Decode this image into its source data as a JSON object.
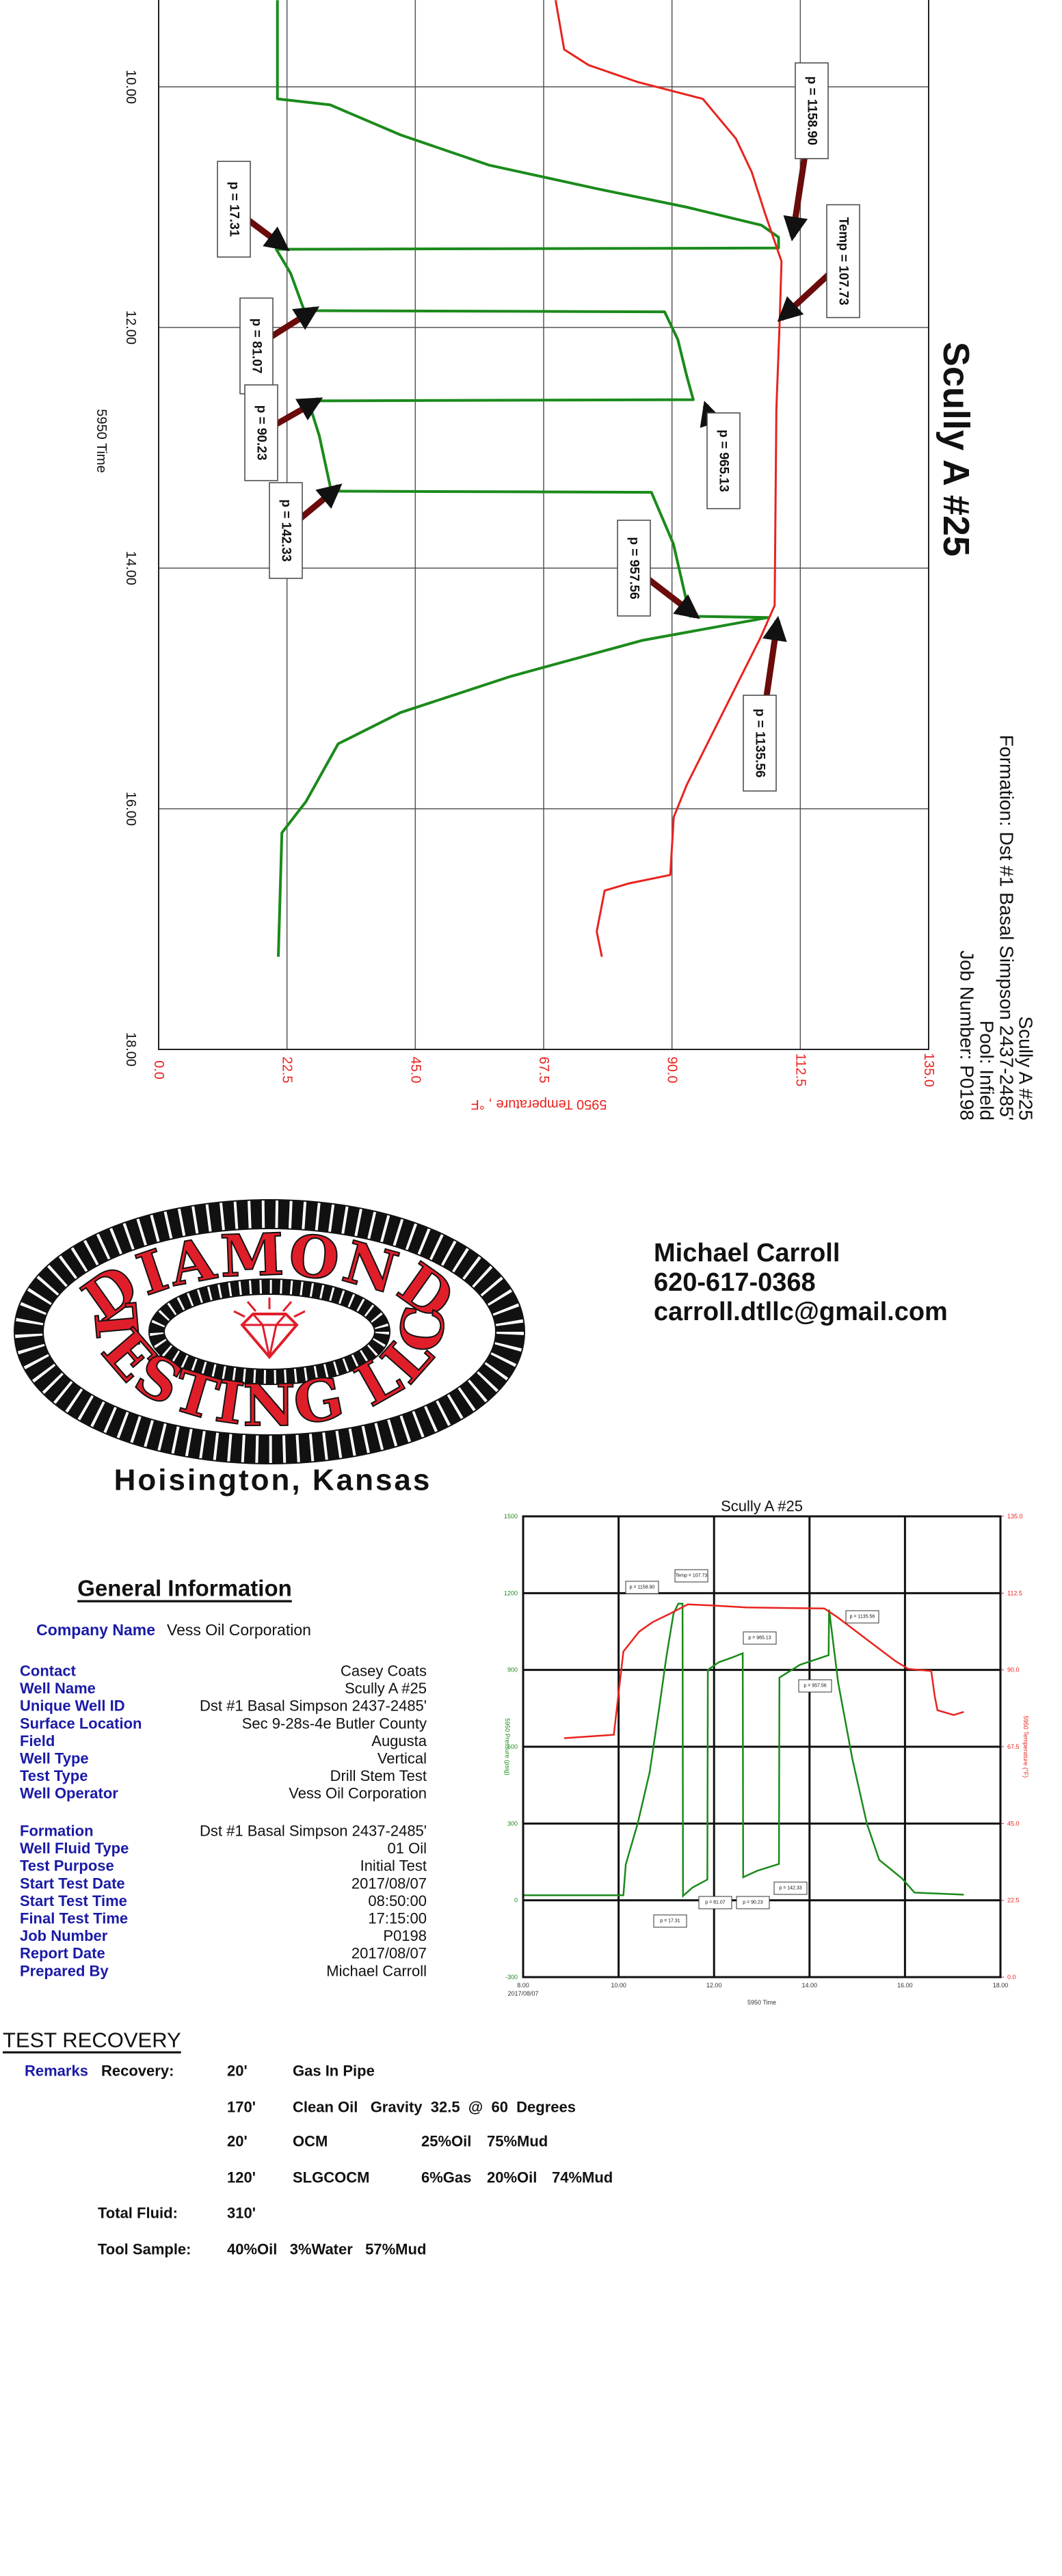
{
  "chart_data": [
    {
      "type": "line",
      "orientation": "rotated",
      "title": "Scully A #25",
      "header": [
        "Scully A #25",
        "Formation: Dst #1 Basal Simpson 2437-2485'",
        "Pool: Infield",
        "Job Number: P0198"
      ],
      "x_label": "5950 Time",
      "y2_label": "5950 Temperature , °F",
      "xlim": [
        8,
        18
      ],
      "xticks": [
        {
          "value": 10,
          "label": "10.00"
        },
        {
          "value": 12,
          "label": "12.00"
        },
        {
          "value": 14,
          "label": "14.00"
        },
        {
          "value": 16,
          "label": "16.00"
        },
        {
          "value": 18,
          "label": "18.00"
        }
      ],
      "ylim": [
        -250,
        1500
      ],
      "y2lim": [
        0,
        135
      ],
      "y2ticks": [
        {
          "value": 0,
          "label": "0.0"
        },
        22.5,
        {
          "value": 45,
          "label": "45.0"
        },
        67.5,
        {
          "value": 90,
          "label": "90.0"
        },
        112.5,
        {
          "value": 135,
          "label": "135.0"
        }
      ],
      "grid": true,
      "series": [
        {
          "color": "#1b8a1b",
          "x": [
            9.28,
            10.1,
            10.15,
            10.4,
            10.65,
            10.85,
            11.0,
            11.15,
            11.25,
            11.34,
            11.35,
            11.55,
            11.86,
            11.87,
            12.1,
            12.4,
            12.6,
            12.61,
            12.9,
            13.36,
            13.37,
            13.8,
            14.4,
            14.41,
            14.6,
            14.9,
            15.2,
            15.46,
            15.94,
            16.2,
            17.23
          ],
          "values": [
            20,
            20,
            140,
            300,
            500,
            750,
            950,
            1120,
            1158.9,
            1158.9,
            17.31,
            50,
            81.07,
            900,
            930,
            950,
            965.13,
            90.23,
            115,
            142.33,
            870,
            920,
            957.56,
            1135.56,
            850,
            550,
            300,
            158,
            85,
            30,
            22
          ]
        },
        {
          "color": "#e8231e",
          "axis": "y2",
          "x": [
            9.28,
            9.69,
            9.82,
            9.96,
            10.1,
            10.43,
            10.71,
            11.05,
            11.45,
            11.93,
            12.68,
            14.31,
            14.58,
            15.26,
            15.8,
            16.07,
            16.55,
            16.62,
            16.68,
            17.02,
            17.23
          ],
          "values": [
            69.6,
            71.1,
            75.4,
            84,
            95.4,
            101.2,
            104,
            106.3,
            109.2,
            108.9,
            108.3,
            108,
            105.5,
            98.3,
            92.6,
            90.3,
            89.7,
            82.5,
            78.2,
            76.8,
            77.7
          ]
        }
      ],
      "annotations": [
        "p = 1158.90",
        "p = 17.31",
        "Temp = 107.73",
        "p = 81.07",
        "p = 90.23",
        "p = 965.13",
        "p = 142.33",
        "p = 957.56",
        "p = 1135.56"
      ]
    },
    {
      "type": "line",
      "title": "Scully A #25",
      "x_label": "5950 Time",
      "x_date_label": "2017/08/07",
      "y_label": "5950 Pressure (psig)",
      "y2_label": "5950 Temperature (°F)",
      "xlim": [
        8,
        18
      ],
      "xticks": [
        {
          "value": 8,
          "label": "8.00"
        },
        {
          "value": 10,
          "label": "10.00"
        },
        {
          "value": 12,
          "label": "12.00"
        },
        {
          "value": 14,
          "label": "14.00"
        },
        {
          "value": 16,
          "label": "16.00"
        },
        {
          "value": 18,
          "label": "18.00"
        }
      ],
      "ylim": [
        -300,
        1500
      ],
      "yticks": [
        -300,
        0,
        300,
        600,
        900,
        1200,
        1500
      ],
      "y2lim": [
        0,
        135
      ],
      "y2ticks": [
        {
          "value": 0,
          "label": "0.0"
        },
        22.5,
        {
          "value": 45,
          "label": "45.0"
        },
        67.5,
        {
          "value": 90,
          "label": "90.0"
        },
        112.5,
        {
          "value": 135,
          "label": "135.0"
        }
      ],
      "grid": true,
      "series": [
        {
          "color": "#1b8a1b",
          "x": [
            8,
            10.1,
            10.15,
            10.4,
            10.65,
            10.85,
            11.0,
            11.15,
            11.25,
            11.34,
            11.35,
            11.55,
            11.86,
            11.87,
            12.1,
            12.4,
            12.6,
            12.61,
            12.9,
            13.36,
            13.37,
            13.8,
            14.4,
            14.41,
            14.6,
            14.9,
            15.2,
            15.46,
            15.94,
            16.2,
            17.23
          ],
          "values": [
            20,
            20,
            140,
            300,
            500,
            750,
            950,
            1120,
            1158.9,
            1158.9,
            17.31,
            50,
            81.07,
            900,
            930,
            950,
            965.13,
            90.23,
            115,
            142.33,
            870,
            920,
            957.56,
            1135.56,
            850,
            550,
            300,
            158,
            85,
            30,
            22
          ]
        },
        {
          "color": "#e8231e",
          "axis": "y2",
          "x": [
            8.86,
            9.9,
            10.1,
            10.43,
            10.71,
            11.05,
            11.45,
            11.93,
            12.68,
            14.31,
            14.58,
            15.26,
            15.8,
            16.07,
            16.55,
            16.62,
            16.68,
            17.02,
            17.23
          ],
          "values": [
            70,
            71,
            95.4,
            101.2,
            104,
            106.3,
            109.2,
            108.9,
            108.3,
            108,
            105.5,
            98.3,
            92.6,
            90.3,
            89.7,
            82.5,
            78.2,
            76.8,
            77.7
          ]
        }
      ],
      "annotations": [
        "p = 1158.90",
        "Temp = 107.73",
        "p = 965.13",
        "p = 1135.56",
        "p = 957.56",
        "p = 17.31",
        "p = 81.07",
        "p = 90.23",
        "p = 142.33"
      ]
    }
  ],
  "logo": {
    "top": "DIAMOND",
    "bottom": "TESTING LLC",
    "location": "Hoisington, Kansas"
  },
  "contact": [
    "Michael Carroll",
    "620-617-0368",
    "carroll.dtllc@gmail.com"
  ],
  "general_information": {
    "title": "General Information",
    "company": {
      "label": "Company Name",
      "value": "Vess Oil Corporation"
    },
    "groups": [
      [
        [
          "Contact",
          "Casey Coats"
        ],
        [
          "Well Name",
          "Scully A #25"
        ],
        [
          "Unique Well ID",
          "Dst #1 Basal Simpson 2437-2485'"
        ],
        [
          "Surface Location",
          "Sec 9-28s-4e Butler County"
        ],
        [
          "Field",
          "Augusta"
        ],
        [
          "Well Type",
          "Vertical"
        ],
        [
          "Test Type",
          "Drill Stem Test"
        ],
        [
          "Well Operator",
          "Vess Oil Corporation"
        ]
      ],
      [
        [
          "Formation",
          "Dst #1 Basal Simpson 2437-2485'"
        ],
        [
          "Well Fluid Type",
          "01 Oil"
        ],
        [
          "Test Purpose",
          "Initial Test"
        ],
        [
          "Start Test Date",
          "2017/08/07"
        ],
        [
          "Start Test Time",
          "08:50:00"
        ],
        [
          "Final Test Time",
          "17:15:00"
        ],
        [
          "Job Number",
          "P0198"
        ],
        [
          "Report Date",
          "2017/08/07"
        ],
        [
          "Prepared By",
          "Michael Carroll"
        ]
      ]
    ]
  },
  "test_recovery": {
    "title": "TEST RECOVERY",
    "remarks": "Remarks",
    "recovery_label": "Recovery:",
    "rows": [
      [
        "20'",
        "Gas In Pipe"
      ],
      [
        "170'",
        "Clean Oil   Gravity  32.5  @  60  Degrees"
      ],
      [
        "20'",
        "OCM",
        "25%Oil",
        "75%Mud"
      ],
      [
        "120'",
        "SLGCOCM",
        "6%Gas",
        "20%Oil",
        "74%Mud"
      ]
    ],
    "total": [
      "Total Fluid:",
      "310'"
    ],
    "tool": [
      "Tool Sample:",
      "40%Oil   3%Water   57%Mud"
    ]
  }
}
